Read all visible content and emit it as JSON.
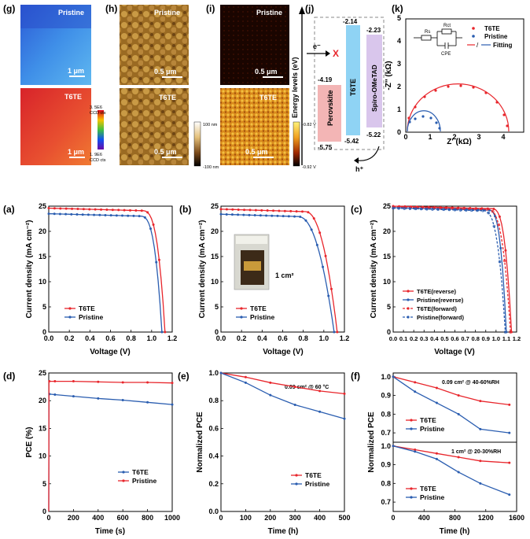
{
  "colors": {
    "red": "#e8262c",
    "blue": "#2a5db0"
  },
  "top": {
    "g": {
      "label": "(g)",
      "tag_top": "Pristine",
      "tag_bottom": "T6TE",
      "scale": "1 μm",
      "cbar_max": "3. 5E6",
      "cbar_max2": "CCD cts",
      "cbar_min": "1. 9E6",
      "cbar_min2": "CCD cts"
    },
    "h": {
      "label": "(h)",
      "tag_top": "Pristine",
      "tag_bottom": "T6TE",
      "scale": "0.5 μm",
      "cbar_max": "100 nm",
      "cbar_min": "-100 nm"
    },
    "i": {
      "label": "(i)",
      "tag_top": "Pristine",
      "tag_bottom": "T6TE",
      "scale": "0.5 μm",
      "cbar_max": "-0.82 V",
      "cbar_min": "-0.92 V"
    },
    "j": {
      "label": "(j)",
      "ylabel": "Energy levels (eV)",
      "e_label": "e⁻",
      "x_mark": "X",
      "h_label": "h⁺",
      "perovskite": "Perovskite",
      "t6te": "T6TE",
      "spiro": "Spiro-OMeTAD",
      "pv_top": "-4.19",
      "pv_bot": "-5.75",
      "t6_top": "-2.14",
      "t6_bot": "-5.42",
      "sp_top": "-2.23",
      "sp_bot": "-5.22"
    },
    "k": {
      "label": "(k)",
      "legend_t6te": "T6TE",
      "legend_pristine": "Pristine",
      "legend_fitting": "Fitting",
      "circuit_rs": "Rs",
      "circuit_rct": "Rct",
      "circuit_cpe": "CPE"
    }
  },
  "chart_data": [
    {
      "id": "a",
      "panel_label": "(a)",
      "type": "line",
      "xlabel": "Voltage (V)",
      "ylabel": "Current density (mA cm⁻²)",
      "xlim": [
        0.0,
        1.2
      ],
      "ylim": [
        0,
        25
      ],
      "xticks": [
        "0.0",
        "0.2",
        "0.4",
        "0.6",
        "0.8",
        "1.0",
        "1.2"
      ],
      "yticks": [
        "0",
        "5",
        "10",
        "15",
        "20",
        "25"
      ],
      "legend_position": "bottom-left",
      "series": [
        {
          "name": "T6TE",
          "color": "red",
          "jsc": 24.6,
          "voc": 1.13,
          "knee": 0.9,
          "sharp": 14
        },
        {
          "name": "Pristine",
          "color": "blue",
          "jsc": 23.5,
          "voc": 1.1,
          "knee": 0.88,
          "sharp": 14
        }
      ]
    },
    {
      "id": "b",
      "panel_label": "(b)",
      "type": "line",
      "xlabel": "Voltage (V)",
      "ylabel": "Current density (mA cm⁻²)",
      "xlim": [
        0.0,
        1.2
      ],
      "ylim": [
        0,
        25
      ],
      "xticks": [
        "0.0",
        "0.2",
        "0.4",
        "0.6",
        "0.8",
        "1.0",
        "1.2"
      ],
      "yticks": [
        "0",
        "5",
        "10",
        "15",
        "20",
        "25"
      ],
      "legend_position": "bottom-left",
      "inset_text": "1 cm²",
      "series": [
        {
          "name": "T6TE",
          "color": "red",
          "jsc": 24.4,
          "voc": 1.13,
          "knee": 0.82,
          "sharp": 8
        },
        {
          "name": "Pristine",
          "color": "blue",
          "jsc": 23.4,
          "voc": 1.1,
          "knee": 0.75,
          "sharp": 7
        }
      ]
    },
    {
      "id": "c",
      "panel_label": "(c)",
      "type": "line",
      "xlabel": "Voltage (V)",
      "ylabel": "Current density (mA cm⁻²)",
      "xlim": [
        0.0,
        1.2
      ],
      "ylim": [
        0,
        25
      ],
      "xticks": [
        "0.0",
        "0.1",
        "0.2",
        "0.3",
        "0.4",
        "0.5",
        "0.6",
        "0.7",
        "0.8",
        "0.9",
        "1.0",
        "1.1",
        "1.2"
      ],
      "yticks": [
        "0",
        "5",
        "10",
        "15",
        "20",
        "25"
      ],
      "legend_position": "bottom-left",
      "series": [
        {
          "name": "T6TE(reverse)",
          "color": "red",
          "dashed": false,
          "jsc": 25.0,
          "voc": 1.15,
          "knee": 0.95,
          "sharp": 16
        },
        {
          "name": "Pristine(reverse)",
          "color": "blue",
          "dashed": false,
          "jsc": 24.7,
          "voc": 1.1,
          "knee": 0.92,
          "sharp": 16
        },
        {
          "name": "T6TE(forward)",
          "color": "red",
          "dashed": true,
          "jsc": 24.9,
          "voc": 1.14,
          "knee": 0.9,
          "sharp": 14
        },
        {
          "name": "Pristine(forward)",
          "color": "blue",
          "dashed": true,
          "jsc": 24.6,
          "voc": 1.09,
          "knee": 0.86,
          "sharp": 14
        }
      ]
    },
    {
      "id": "d",
      "panel_label": "(d)",
      "type": "line",
      "xlabel": "Time (s)",
      "ylabel": "PCE (%)",
      "xlim": [
        0,
        1000
      ],
      "ylim": [
        0,
        25
      ],
      "xticks": [
        "0",
        "200",
        "400",
        "600",
        "800",
        "1000"
      ],
      "yticks": [
        "0",
        "5",
        "10",
        "15",
        "20",
        "25"
      ],
      "legend_position": "bottom-right",
      "series": [
        {
          "name": "T6TE",
          "color": "blue",
          "x": [
            0,
            2,
            5,
            50,
            200,
            400,
            600,
            800,
            1000
          ],
          "y": [
            0,
            20.8,
            21.2,
            21.1,
            20.8,
            20.4,
            20.1,
            19.7,
            19.3
          ]
        },
        {
          "name": "Pristine",
          "color": "red",
          "x": [
            0,
            2,
            5,
            50,
            200,
            400,
            600,
            800,
            1000
          ],
          "y": [
            0,
            23.3,
            23.5,
            23.5,
            23.5,
            23.4,
            23.3,
            23.3,
            23.2
          ]
        }
      ]
    },
    {
      "id": "e",
      "panel_label": "(e)",
      "type": "line",
      "xlabel": "Time (h)",
      "ylabel": "Normalized PCE",
      "xlim": [
        0,
        500
      ],
      "ylim": [
        0.0,
        1.0
      ],
      "xticks": [
        "0",
        "100",
        "200",
        "300",
        "400",
        "500"
      ],
      "yticks": [
        "0.0",
        "0.2",
        "0.4",
        "0.6",
        "0.8",
        "1.0"
      ],
      "legend_position": "bottom-right",
      "annotation": "0.09 cm² @ 60 °C",
      "series": [
        {
          "name": "T6TE",
          "color": "red",
          "x": [
            0,
            100,
            200,
            300,
            400,
            500
          ],
          "y": [
            1.0,
            0.97,
            0.93,
            0.9,
            0.87,
            0.85
          ]
        },
        {
          "name": "Pristine",
          "color": "blue",
          "x": [
            0,
            100,
            200,
            300,
            400,
            500
          ],
          "y": [
            1.0,
            0.93,
            0.84,
            0.77,
            0.72,
            0.67
          ]
        }
      ]
    },
    {
      "id": "f1",
      "panel_label": "(f)",
      "type": "line",
      "xlabel": "",
      "ylabel": "Normalized PCE",
      "xlim": [
        0,
        1700
      ],
      "ylim": [
        0.65,
        1.02
      ],
      "xticks": [],
      "yticks": [
        "0.7",
        "0.8",
        "0.9",
        "1.0"
      ],
      "legend_position": "bottom-left",
      "annotation": "0.09 cm² @ 40-60%RH",
      "series": [
        {
          "name": "T6TE",
          "color": "red",
          "x": [
            0,
            300,
            600,
            900,
            1200,
            1600
          ],
          "y": [
            1.0,
            0.97,
            0.94,
            0.9,
            0.87,
            0.85
          ]
        },
        {
          "name": "Pristine",
          "color": "blue",
          "x": [
            0,
            300,
            600,
            900,
            1200,
            1600
          ],
          "y": [
            1.0,
            0.92,
            0.86,
            0.8,
            0.72,
            0.7
          ]
        }
      ]
    },
    {
      "id": "f2",
      "panel_label": "",
      "type": "line",
      "xlabel": "Time (h)",
      "ylabel": "",
      "xlim": [
        0,
        1700
      ],
      "ylim": [
        0.65,
        1.02
      ],
      "xticks": [
        "0",
        "400",
        "800",
        "1200",
        "1600"
      ],
      "yticks": [
        "0.7",
        "0.8",
        "0.9",
        "1.0"
      ],
      "legend_position": "bottom-left",
      "annotation": "1 cm² @ 20-30%RH",
      "series": [
        {
          "name": "T6TE",
          "color": "red",
          "x": [
            0,
            300,
            600,
            900,
            1200,
            1600
          ],
          "y": [
            1.0,
            0.98,
            0.96,
            0.94,
            0.92,
            0.91
          ]
        },
        {
          "name": "Pristine",
          "color": "blue",
          "x": [
            0,
            300,
            600,
            900,
            1200,
            1600
          ],
          "y": [
            1.0,
            0.97,
            0.93,
            0.86,
            0.8,
            0.74
          ]
        }
      ]
    }
  ]
}
